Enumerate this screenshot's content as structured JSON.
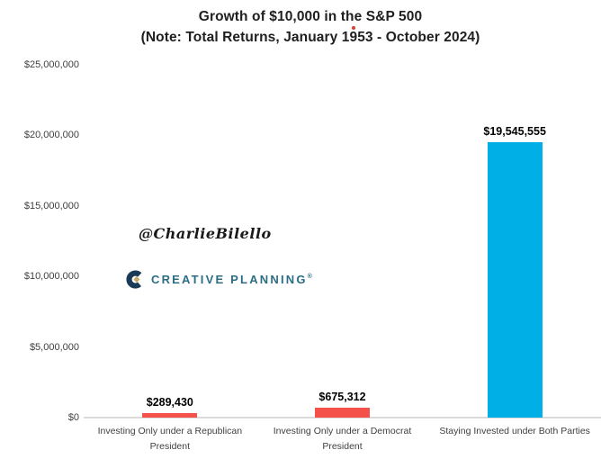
{
  "title": {
    "line1": "Growth of $10,000 in the S&P 500",
    "line2": "(Note: Total Returns, January 1953 - October 2024)"
  },
  "watermark": "@CharlieBilello",
  "logo": {
    "text": "CREATIVE PLANNING",
    "registered": "®",
    "text_color": "#2b6d85",
    "mark_color": "#1b3a55",
    "diamond_color": "#c9a962"
  },
  "chart_data": {
    "type": "bar",
    "title": "Growth of $10,000 in the S&P 500 (Note: Total Returns, January 1953 - October 2024)",
    "categories": [
      "Investing Only under a Republican President",
      "Investing Only under a Democrat President",
      "Staying Invested under Both Parties"
    ],
    "values": [
      289430,
      675312,
      19545555
    ],
    "value_labels": [
      "$289,430",
      "$675,312",
      "$19,545,555"
    ],
    "bar_colors": [
      "#f4514a",
      "#f4514a",
      "#00afe6"
    ],
    "bar_ids": [
      "republican-only",
      "democrat-only",
      "both-parties"
    ],
    "xlabel": "",
    "ylabel": "",
    "ylim": [
      0,
      25000000
    ],
    "y_ticks": [
      0,
      5000000,
      10000000,
      15000000,
      20000000,
      25000000
    ],
    "y_tick_labels": [
      "$0",
      "$5,000,000",
      "$10,000,000",
      "$15,000,000",
      "$20,000,000",
      "$25,000,000"
    ],
    "grid": false,
    "legend": false,
    "axis_line_color": "#dbdbdb"
  }
}
